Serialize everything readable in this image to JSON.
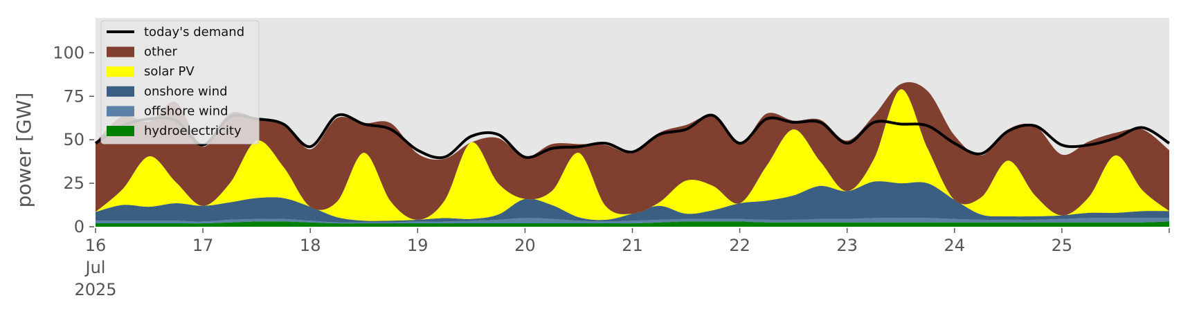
{
  "chart_data": {
    "type": "area",
    "title": "",
    "xlabel": "",
    "ylabel": "power [GW]",
    "ylim": [
      0,
      120
    ],
    "xlim": [
      "2025-07-16",
      "2025-07-26"
    ],
    "grid": false,
    "background": "#e6e6e6",
    "legend": {
      "placement": "top-left",
      "entries": [
        "today's demand",
        "other",
        "solar PV",
        "onshore wind",
        "offshore wind",
        "hydroelectricity"
      ]
    },
    "y_ticks": [
      0,
      25,
      50,
      75,
      100
    ],
    "x_ticks": [
      {
        "date": "2025-07-16",
        "label": "16",
        "sub": [
          "Jul",
          "2025"
        ]
      },
      {
        "date": "2025-07-17",
        "label": "17"
      },
      {
        "date": "2025-07-18",
        "label": "18"
      },
      {
        "date": "2025-07-19",
        "label": "19"
      },
      {
        "date": "2025-07-20",
        "label": "20"
      },
      {
        "date": "2025-07-21",
        "label": "21"
      },
      {
        "date": "2025-07-22",
        "label": "22"
      },
      {
        "date": "2025-07-23",
        "label": "23"
      },
      {
        "date": "2025-07-24",
        "label": "24"
      },
      {
        "date": "2025-07-25",
        "label": "25"
      },
      {
        "date": "2025-07-26",
        "label": ""
      }
    ],
    "x": [
      "2025-07-16 00:00",
      "2025-07-16 06:00",
      "2025-07-16 12:00",
      "2025-07-16 18:00",
      "2025-07-17 00:00",
      "2025-07-17 06:00",
      "2025-07-17 12:00",
      "2025-07-17 18:00",
      "2025-07-18 00:00",
      "2025-07-18 06:00",
      "2025-07-18 12:00",
      "2025-07-18 18:00",
      "2025-07-19 00:00",
      "2025-07-19 06:00",
      "2025-07-19 12:00",
      "2025-07-19 18:00",
      "2025-07-20 00:00",
      "2025-07-20 06:00",
      "2025-07-20 12:00",
      "2025-07-20 18:00",
      "2025-07-21 00:00",
      "2025-07-21 06:00",
      "2025-07-21 12:00",
      "2025-07-21 18:00",
      "2025-07-22 00:00",
      "2025-07-22 06:00",
      "2025-07-22 12:00",
      "2025-07-22 18:00",
      "2025-07-23 00:00",
      "2025-07-23 06:00",
      "2025-07-23 12:00",
      "2025-07-23 18:00",
      "2025-07-24 00:00",
      "2025-07-24 06:00",
      "2025-07-24 12:00",
      "2025-07-24 18:00",
      "2025-07-25 00:00",
      "2025-07-25 06:00",
      "2025-07-25 12:00",
      "2025-07-25 18:00",
      "2025-07-26 00:00"
    ],
    "series": [
      {
        "name": "hydroelectricity",
        "kind": "stack",
        "color": "#008000",
        "values": [
          2,
          2,
          2,
          2,
          2,
          2.5,
          3,
          3,
          2.5,
          2,
          2,
          2,
          2,
          2,
          2,
          2,
          2,
          2,
          2,
          2,
          2,
          2.5,
          3,
          3,
          3,
          2.5,
          2.5,
          2.5,
          2.5,
          2.5,
          2.5,
          2.5,
          2.5,
          2.5,
          2.5,
          2.5,
          2.5,
          2.5,
          2.5,
          2.5,
          3
        ]
      },
      {
        "name": "offshore wind",
        "kind": "stack",
        "color": "#5b82a6",
        "values": [
          1.5,
          1.5,
          1.5,
          1.5,
          1,
          1.5,
          1.5,
          1.5,
          1,
          0.5,
          0.5,
          0.5,
          1,
          1,
          1.5,
          2,
          3,
          2.5,
          1.5,
          1,
          1.5,
          1.5,
          1.5,
          1.5,
          1.5,
          1.5,
          1.5,
          2,
          2,
          2.5,
          2.5,
          2.5,
          2,
          1.5,
          1.5,
          1.5,
          2,
          2.5,
          2.5,
          2.5,
          2
        ]
      },
      {
        "name": "onshore wind",
        "kind": "stack",
        "color": "#3a5f82",
        "values": [
          5,
          9,
          8,
          10,
          9,
          10,
          12,
          12,
          8,
          3,
          1,
          1,
          1,
          2,
          1,
          3,
          11,
          8,
          2,
          1,
          4,
          8,
          3,
          5,
          9,
          11,
          14,
          19,
          16,
          21,
          20,
          20,
          11,
          3,
          2,
          2,
          2,
          3,
          3,
          4,
          4
        ]
      },
      {
        "name": "solar PV",
        "kind": "stack",
        "color": "#ffff00",
        "values": [
          0,
          9,
          29,
          12,
          0,
          11,
          33,
          18,
          0,
          9,
          39,
          11,
          0,
          10,
          44,
          18,
          0,
          8,
          37,
          8,
          0,
          2,
          19,
          14,
          0,
          20,
          38,
          14,
          0,
          13,
          54,
          20,
          0,
          10,
          32,
          12,
          0,
          9,
          33,
          12,
          0
        ]
      },
      {
        "name": "other",
        "kind": "stack",
        "color": "#803f2f",
        "values": [
          40,
          42,
          20,
          46,
          34,
          40,
          13,
          25,
          33,
          48,
          17,
          45,
          38,
          24,
          0,
          26,
          24,
          27,
          5,
          35,
          35,
          40,
          32,
          40,
          34,
          30,
          5,
          24,
          29,
          25,
          3,
          33,
          37,
          24,
          18,
          40,
          35,
          32,
          13,
          35,
          35
        ]
      },
      {
        "name": "today's demand",
        "kind": "line",
        "color": "#000000",
        "values": [
          48,
          58,
          62,
          61,
          47,
          63,
          62,
          59,
          46,
          64,
          59,
          56,
          44,
          40,
          52,
          53,
          40,
          45,
          46,
          48,
          43,
          53,
          56,
          64,
          48,
          62,
          60,
          60,
          48,
          60,
          59,
          58,
          48,
          42,
          55,
          58,
          47,
          47,
          51,
          57,
          48
        ]
      }
    ]
  }
}
